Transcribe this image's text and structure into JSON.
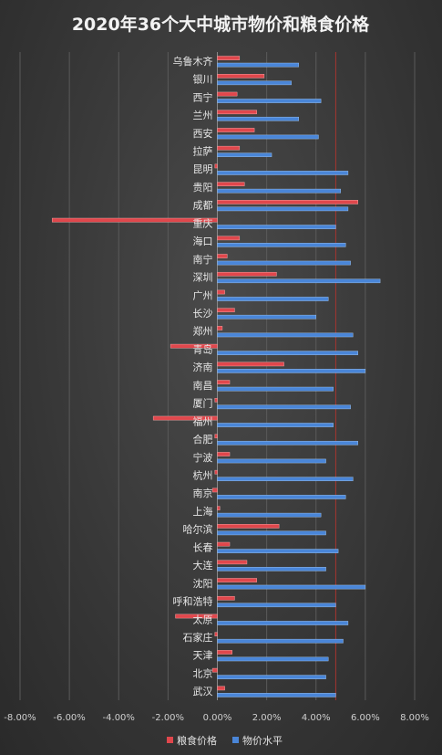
{
  "chart_data": {
    "type": "bar",
    "orientation": "horizontal",
    "title": "2020年36个大中城市物价和粮食价格",
    "categories": [
      "乌鲁木齐",
      "银川",
      "西宁",
      "兰州",
      "西安",
      "拉萨",
      "昆明",
      "贵阳",
      "成都",
      "重庆",
      "海口",
      "南宁",
      "深圳",
      "广州",
      "长沙",
      "郑州",
      "青岛",
      "济南",
      "南昌",
      "厦门",
      "福州",
      "合肥",
      "宁波",
      "杭州",
      "南京",
      "上海",
      "哈尔滨",
      "长春",
      "大连",
      "沈阳",
      "呼和浩特",
      "太原",
      "石家庄",
      "天津",
      "北京",
      "武汉"
    ],
    "series": [
      {
        "name": "粮食价格",
        "color": "#e0474c",
        "values": [
          0.9,
          1.9,
          0.8,
          1.6,
          1.5,
          0.9,
          -0.1,
          1.1,
          5.7,
          -6.7,
          0.9,
          0.4,
          2.4,
          0.3,
          0.7,
          0.2,
          -1.9,
          2.7,
          0.5,
          -0.1,
          -2.6,
          -0.1,
          0.5,
          -0.1,
          -0.2,
          0.1,
          2.5,
          0.5,
          1.2,
          1.6,
          0.7,
          -1.7,
          -0.1,
          0.6,
          -0.2,
          0.3
        ]
      },
      {
        "name": "物价水平",
        "color": "#4a86d8",
        "values": [
          3.3,
          3.0,
          4.2,
          3.3,
          4.1,
          2.2,
          5.3,
          5.0,
          5.3,
          4.8,
          5.2,
          5.4,
          6.6,
          4.5,
          4.0,
          5.5,
          5.7,
          6.0,
          4.7,
          5.4,
          4.7,
          5.7,
          4.4,
          5.5,
          5.2,
          4.2,
          4.4,
          4.9,
          4.4,
          6.0,
          4.8,
          5.3,
          5.1,
          4.5,
          4.4,
          4.8
        ]
      }
    ],
    "xlim": [
      -8,
      8
    ],
    "xticks": [
      "-8.00%",
      "-6.00%",
      "-4.00%",
      "-2.00%",
      "0.00%",
      "2.00%",
      "4.00%",
      "6.00%",
      "8.00%"
    ],
    "reference_line": 4.8,
    "legend": "bottom",
    "grid": true
  }
}
